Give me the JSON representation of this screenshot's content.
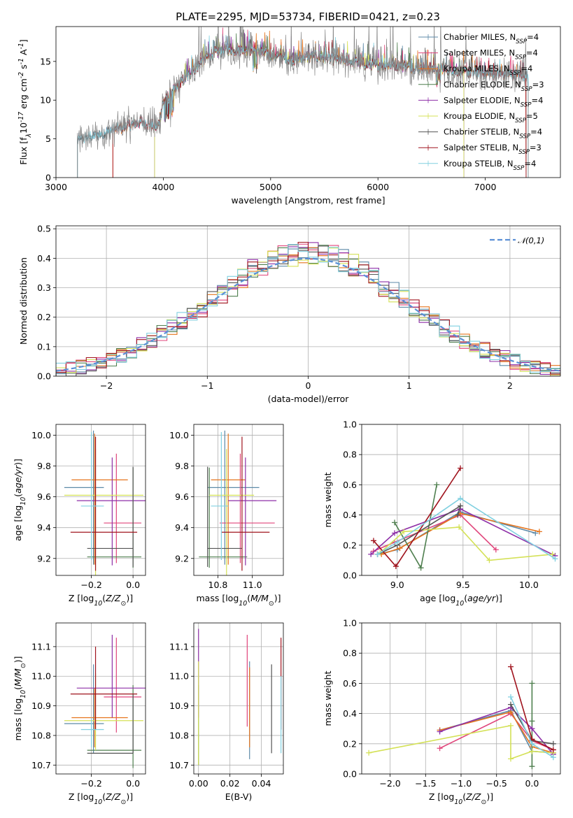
{
  "figure": {
    "title": "PLATE=2295, MJD=53734, FIBERID=0421, z=0.23"
  },
  "models": [
    {
      "label": "Chabrier MILES, N$_{SSP}$=4",
      "color": "#5d8aa8"
    },
    {
      "label": "Salpeter MILES, N$_{SSP}$=4",
      "color": "#e0457b"
    },
    {
      "label": "Kroupa MILES, N$_{SSP}$=4",
      "color": "#e5741d"
    },
    {
      "label": "Chabrier ELODIE, N$_{SSP}$=3",
      "color": "#4f7f4f"
    },
    {
      "label": "Salpeter ELODIE, N$_{SSP}$=4",
      "color": "#8e2fa7"
    },
    {
      "label": "Kroupa ELODIE, N$_{SSP}$=5",
      "color": "#d4e157"
    },
    {
      "label": "Chabrier STELIB, N$_{SSP}$=4",
      "color": "#555555"
    },
    {
      "label": "Salpeter STELIB, N$_{SSP}$=3",
      "color": "#a0141e"
    },
    {
      "label": "Kroupa STELIB, N$_{SSP}$=4",
      "color": "#80d0e0"
    }
  ],
  "chart_data": [
    {
      "id": "spectrum",
      "type": "line",
      "xlabel": "wavelength [Angstrom, rest frame]",
      "ylabel": "Flux [f$_\\lambda$10$^{-17}$ erg cm$^{-2}$ s$^{-1}$ A$^{-1}$]",
      "xlim": [
        3000,
        7700
      ],
      "ylim": [
        0,
        19.5
      ],
      "xticks": [
        3000,
        4000,
        5000,
        6000,
        7000
      ],
      "yticks": [
        0,
        5,
        10,
        15
      ],
      "grid": false,
      "legend": "right",
      "continuum": [
        [
          3200,
          4.8
        ],
        [
          3400,
          5.6
        ],
        [
          3600,
          6.4
        ],
        [
          3800,
          7.2
        ],
        [
          3950,
          6.5
        ],
        [
          4000,
          9.8
        ],
        [
          4100,
          11.2
        ],
        [
          4200,
          12.8
        ],
        [
          4300,
          14.2
        ],
        [
          4400,
          15.5
        ],
        [
          4500,
          16.2
        ],
        [
          4600,
          16.6
        ],
        [
          4700,
          16.5
        ],
        [
          4800,
          16.6
        ],
        [
          4900,
          16.2
        ],
        [
          5000,
          15.9
        ],
        [
          5100,
          15.6
        ],
        [
          5200,
          15.2
        ],
        [
          5300,
          15.5
        ],
        [
          5400,
          15.6
        ],
        [
          5500,
          15.5
        ],
        [
          5600,
          15.3
        ],
        [
          5700,
          15.0
        ],
        [
          5800,
          14.9
        ],
        [
          5900,
          14.6
        ],
        [
          6000,
          14.5
        ],
        [
          6100,
          14.6
        ],
        [
          6200,
          14.6
        ],
        [
          6300,
          14.3
        ],
        [
          6400,
          14.2
        ],
        [
          6500,
          14.1
        ],
        [
          6600,
          14.0
        ],
        [
          6700,
          13.9
        ],
        [
          6800,
          13.7
        ],
        [
          6900,
          13.6
        ],
        [
          7000,
          13.5
        ],
        [
          7100,
          13.4
        ],
        [
          7200,
          13.3
        ],
        [
          7300,
          13.2
        ],
        [
          7400,
          13.1
        ]
      ],
      "series_ranges": [
        [
          3200,
          7400
        ],
        [
          3530,
          7380
        ],
        [
          3530,
          7380
        ],
        [
          3920,
          6800
        ],
        [
          3920,
          6800
        ],
        [
          3920,
          6800
        ],
        [
          3200,
          7380
        ],
        [
          3530,
          7380
        ],
        [
          3200,
          7400
        ]
      ]
    },
    {
      "id": "residuals",
      "type": "histogram",
      "xlabel": "(data-model)/error",
      "ylabel": "Normed distribution",
      "xlim": [
        -2.5,
        2.5
      ],
      "ylim": [
        0,
        0.51
      ],
      "xticks": [
        -2,
        -1,
        0,
        1,
        2
      ],
      "yticks": [
        0.0,
        0.1,
        0.2,
        0.3,
        0.4,
        0.5
      ],
      "grid": true,
      "legend": "top-right",
      "gaussian_label": "$\\mathcal{N}(0,1)$",
      "gaussian_color": "#5b8fd6",
      "bin_width": 0.1
    },
    {
      "id": "age_vs_Z",
      "type": "errorbar",
      "xlabel": "Z [log$_{10}$($Z/Z_\\odot$)]",
      "ylabel": "age  [log$_{10}$($age/yr$)]",
      "xlim": [
        -0.37,
        0.06
      ],
      "ylim": [
        9.09,
        10.07
      ],
      "xticks": [
        -0.2,
        0.0
      ],
      "yticks": [
        9.2,
        9.4,
        9.6,
        9.8,
        10.0
      ],
      "grid": true,
      "points": [
        {
          "x": -0.19,
          "xerr": [
            0.14,
            0.05
          ],
          "y": 9.66,
          "yerr": [
            0.5,
            0.37
          ]
        },
        {
          "x": -0.08,
          "xerr": [
            0.06,
            0.12
          ],
          "y": 9.43,
          "yerr": [
            0.26,
            0.45
          ]
        },
        {
          "x": -0.185,
          "xerr": [
            0.11,
            0.16
          ],
          "y": 9.71,
          "yerr": [
            0.55,
            0.3
          ]
        },
        {
          "x": 0.0,
          "xerr": [
            0.22,
            0.04
          ],
          "y": 9.21,
          "yerr": [
            0.07,
            0.58
          ]
        },
        {
          "x": -0.1,
          "xerr": [
            0.17,
            0.2
          ],
          "y": 9.575,
          "yerr": [
            0.42,
            0.28
          ]
        },
        {
          "x": -0.18,
          "xerr": [
            0.15,
            0.23
          ],
          "y": 9.61,
          "yerr": [
            0.55,
            0.3
          ]
        },
        {
          "x": 0.0,
          "xerr": [
            0.22,
            0.0
          ],
          "y": 9.265,
          "yerr": [
            0.12,
            0.53
          ]
        },
        {
          "x": -0.18,
          "xerr": [
            0.12,
            0.2
          ],
          "y": 9.37,
          "yerr": [
            0.25,
            0.62
          ]
        },
        {
          "x": -0.2,
          "xerr": [
            0.05,
            0.06
          ],
          "y": 9.54,
          "yerr": [
            0.35,
            0.48
          ]
        }
      ]
    },
    {
      "id": "age_vs_mass",
      "type": "errorbar",
      "xlabel": "mass [log$_{10}$($M/M_\\odot$)]",
      "ylabel": "",
      "xlim": [
        10.66,
        11.18
      ],
      "ylim": [
        9.09,
        10.07
      ],
      "xticks": [
        10.8,
        11.0
      ],
      "yticks": [
        9.2,
        9.4,
        9.6,
        9.8,
        10.0
      ],
      "grid": true,
      "points": [
        {
          "x": 10.84,
          "xerr": [
            0.1,
            0.2
          ],
          "y": 9.66,
          "yerr": [
            0.5,
            0.37
          ]
        },
        {
          "x": 10.93,
          "xerr": [
            0.12,
            0.2
          ],
          "y": 9.43,
          "yerr": [
            0.26,
            0.45
          ]
        },
        {
          "x": 10.86,
          "xerr": [
            0.1,
            0.1
          ],
          "y": 9.71,
          "yerr": [
            0.55,
            0.3
          ]
        },
        {
          "x": 10.75,
          "xerr": [
            0.06,
            0.22
          ],
          "y": 9.21,
          "yerr": [
            0.07,
            0.58
          ]
        },
        {
          "x": 10.96,
          "xerr": [
            0.1,
            0.18
          ],
          "y": 9.575,
          "yerr": [
            0.42,
            0.28
          ]
        },
        {
          "x": 10.85,
          "xerr": [
            0.1,
            0.16
          ],
          "y": 9.61,
          "yerr": [
            0.55,
            0.3
          ]
        },
        {
          "x": 10.74,
          "xerr": [
            0.0,
            0.2
          ],
          "y": 9.265,
          "yerr": [
            0.12,
            0.53
          ]
        },
        {
          "x": 10.94,
          "xerr": [
            0.12,
            0.16
          ],
          "y": 9.37,
          "yerr": [
            0.25,
            0.62
          ]
        },
        {
          "x": 10.82,
          "xerr": [
            0.06,
            0.04
          ],
          "y": 9.54,
          "yerr": [
            0.35,
            0.48
          ]
        }
      ]
    },
    {
      "id": "mass_weight_vs_age",
      "type": "line",
      "xlabel": "age  [log$_{10}$($age/yr$)]",
      "ylabel": "mass weight",
      "xlim": [
        8.73,
        10.24
      ],
      "ylim": [
        0.0,
        1.0
      ],
      "xticks": [
        9.0,
        9.5,
        10.0
      ],
      "yticks": [
        0.0,
        0.2,
        0.4,
        0.6,
        0.8,
        1.0
      ],
      "grid": true,
      "series": [
        {
          "x": [
            8.85,
            9.0,
            9.48,
            10.05
          ],
          "y": [
            0.14,
            0.17,
            0.42,
            0.28
          ]
        },
        {
          "x": [
            8.82,
            8.98,
            9.48,
            9.75
          ],
          "y": [
            0.16,
            0.22,
            0.4,
            0.17
          ]
        },
        {
          "x": [
            8.88,
            9.02,
            9.48,
            10.08
          ],
          "y": [
            0.14,
            0.18,
            0.41,
            0.29
          ]
        },
        {
          "x": [
            8.98,
            9.18,
            9.3
          ],
          "y": [
            0.35,
            0.05,
            0.6
          ]
        },
        {
          "x": [
            8.8,
            8.98,
            9.48,
            10.2
          ],
          "y": [
            0.14,
            0.28,
            0.44,
            0.13
          ]
        },
        {
          "x": [
            8.87,
            9.05,
            9.47,
            9.7,
            10.18
          ],
          "y": [
            0.15,
            0.29,
            0.32,
            0.1,
            0.14
          ]
        },
        {
          "x": [
            8.85,
            9.0,
            9.48,
            9.46
          ],
          "y": [
            0.14,
            0.2,
            0.46,
            0.4
          ]
        },
        {
          "x": [
            8.82,
            8.99,
            9.48
          ],
          "y": [
            0.23,
            0.06,
            0.71
          ]
        },
        {
          "x": [
            8.85,
            9.0,
            9.48,
            10.2
          ],
          "y": [
            0.14,
            0.22,
            0.51,
            0.11
          ]
        }
      ]
    },
    {
      "id": "mass_vs_Z",
      "type": "errorbar",
      "xlabel": "Z [log$_{10}$($Z/Z_\\odot$)]",
      "ylabel": "mass [log$_{10}$($M/M_\\odot$)]",
      "xlim": [
        -0.37,
        0.06
      ],
      "ylim": [
        10.67,
        11.18
      ],
      "xticks": [
        -0.2,
        0.0
      ],
      "yticks": [
        10.7,
        10.8,
        10.9,
        11.0,
        11.1
      ],
      "grid": true,
      "points": [
        {
          "x": -0.19,
          "xerr": [
            0.14,
            0.05
          ],
          "y": 10.84,
          "yerr": [
            0.1,
            0.2
          ]
        },
        {
          "x": -0.08,
          "xerr": [
            0.06,
            0.12
          ],
          "y": 10.93,
          "yerr": [
            0.12,
            0.2
          ]
        },
        {
          "x": -0.185,
          "xerr": [
            0.11,
            0.16
          ],
          "y": 10.86,
          "yerr": [
            0.1,
            0.1
          ]
        },
        {
          "x": 0.0,
          "xerr": [
            0.22,
            0.04
          ],
          "y": 10.75,
          "yerr": [
            0.06,
            0.22
          ]
        },
        {
          "x": -0.1,
          "xerr": [
            0.17,
            0.2
          ],
          "y": 10.96,
          "yerr": [
            0.1,
            0.18
          ]
        },
        {
          "x": -0.18,
          "xerr": [
            0.15,
            0.23
          ],
          "y": 10.85,
          "yerr": [
            0.1,
            0.16
          ]
        },
        {
          "x": 0.0,
          "xerr": [
            0.22,
            0.0
          ],
          "y": 10.74,
          "yerr": [
            0.0,
            0.2
          ]
        },
        {
          "x": -0.18,
          "xerr": [
            0.12,
            0.2
          ],
          "y": 10.94,
          "yerr": [
            0.12,
            0.16
          ]
        },
        {
          "x": -0.2,
          "xerr": [
            0.05,
            0.06
          ],
          "y": 10.82,
          "yerr": [
            0.06,
            0.04
          ]
        }
      ]
    },
    {
      "id": "mass_vs_ebv",
      "type": "errorbar",
      "xlabel": "E(B-V)",
      "ylabel": "",
      "xlim": [
        -0.003,
        0.054
      ],
      "ylim": [
        10.67,
        11.18
      ],
      "xticks": [
        0.0,
        0.02,
        0.04
      ],
      "yticks": [
        10.7,
        10.8,
        10.9,
        11.0,
        11.1
      ],
      "grid": true,
      "points": [
        {
          "x": 0.0325,
          "xerr": [
            0,
            0
          ],
          "y": 10.84,
          "yerr": [
            0.12,
            0.21
          ]
        },
        {
          "x": 0.031,
          "xerr": [
            0,
            0
          ],
          "y": 10.93,
          "yerr": [
            0.1,
            0.21
          ]
        },
        {
          "x": 0.0325,
          "xerr": [
            0,
            0
          ],
          "y": 10.86,
          "yerr": [
            0.1,
            0.17
          ]
        },
        {
          "x": 0.0,
          "xerr": [
            0,
            0
          ],
          "y": 10.75,
          "yerr": [
            0.05,
            0.22
          ]
        },
        {
          "x": 0.0,
          "xerr": [
            0,
            0
          ],
          "y": 10.96,
          "yerr": [
            0.1,
            0.2
          ]
        },
        {
          "x": 0.0,
          "xerr": [
            0,
            0
          ],
          "y": 10.85,
          "yerr": [
            0.15,
            0.2
          ]
        },
        {
          "x": 0.0465,
          "xerr": [
            0,
            0
          ],
          "y": 10.74,
          "yerr": [
            0.0,
            0.3
          ]
        },
        {
          "x": 0.0525,
          "xerr": [
            0,
            0
          ],
          "y": 10.94,
          "yerr": [
            0.12,
            0.19
          ]
        },
        {
          "x": 0.0525,
          "xerr": [
            0,
            0
          ],
          "y": 10.85,
          "yerr": [
            0.11,
            0.15
          ]
        }
      ]
    },
    {
      "id": "mass_weight_vs_Z",
      "type": "line",
      "xlabel": "Z [log$_{10}$($Z/Z_\\odot$)]",
      "ylabel": "mass weight",
      "xlim": [
        -2.4,
        0.4
      ],
      "ylim": [
        0.0,
        1.0
      ],
      "xticks": [
        -2.0,
        -1.5,
        -1.0,
        -0.5,
        0.0
      ],
      "yticks": [
        0.0,
        0.2,
        0.4,
        0.6,
        0.8,
        1.0
      ],
      "grid": true,
      "series": [
        {
          "x": [
            -1.3,
            -0.3,
            0.0,
            0.3
          ],
          "y": [
            0.29,
            0.42,
            0.15,
            0.14
          ]
        },
        {
          "x": [
            -1.3,
            -0.3,
            0.0,
            0.3
          ],
          "y": [
            0.17,
            0.4,
            0.22,
            0.16
          ]
        },
        {
          "x": [
            -1.3,
            -0.3,
            0.0,
            0.3
          ],
          "y": [
            0.29,
            0.41,
            0.18,
            0.14
          ]
        },
        {
          "x": [
            0.0,
            0.0,
            0.0
          ],
          "y": [
            0.6,
            0.35,
            0.05
          ]
        },
        {
          "x": [
            -1.3,
            -0.3,
            0.0,
            0.3
          ],
          "y": [
            0.28,
            0.44,
            0.3,
            0.13
          ]
        },
        {
          "x": [
            -2.3,
            -0.3,
            -0.3,
            0.0,
            0.3
          ],
          "y": [
            0.14,
            0.32,
            0.1,
            0.15,
            0.14
          ]
        },
        {
          "x": [
            -0.3,
            0.0,
            0.3
          ],
          "y": [
            0.46,
            0.22,
            0.2
          ]
        },
        {
          "x": [
            -0.3,
            0.0,
            0.3
          ],
          "y": [
            0.71,
            0.23,
            0.16
          ]
        },
        {
          "x": [
            -0.3,
            0.0,
            0.3
          ],
          "y": [
            0.51,
            0.2,
            0.11
          ]
        }
      ]
    }
  ]
}
